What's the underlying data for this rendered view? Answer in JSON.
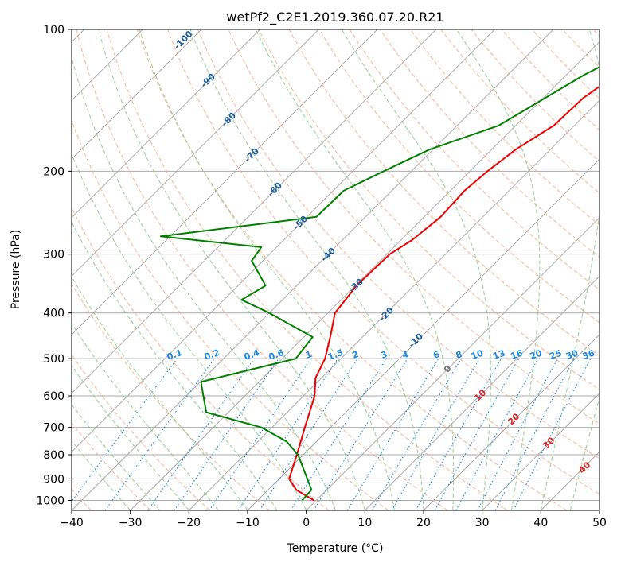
{
  "chart_data": {
    "type": "line",
    "subtype": "skew-t log-p diagram",
    "title": "wetPf2_C2E1.2019.360.07.20.R21",
    "xlabel": "Temperature (°C)",
    "ylabel": "Pressure (hPa)",
    "xlim": [
      -40,
      50
    ],
    "ylim": [
      1050,
      100
    ],
    "y_scale": "log",
    "x_ticks": [
      -40,
      -30,
      -20,
      -10,
      0,
      10,
      20,
      30,
      40,
      50
    ],
    "x_tick_labels": [
      "−40",
      "−30",
      "−20",
      "−10",
      "0",
      "10",
      "20",
      "30",
      "40",
      "50"
    ],
    "y_ticks": [
      100,
      200,
      300,
      400,
      500,
      600,
      700,
      800,
      900,
      1000
    ],
    "y_tick_labels": [
      "100",
      "200",
      "300",
      "400",
      "500",
      "600",
      "700",
      "800",
      "900",
      "1000"
    ],
    "grid": true,
    "series": [
      {
        "color": "#ee0000",
        "points": [
          [
            -18.8,
            100
          ],
          [
            -20.2,
            110
          ],
          [
            -21.6,
            125
          ],
          [
            -23.2,
            140
          ],
          [
            -23.5,
            160
          ],
          [
            -25.9,
            180
          ],
          [
            -27.0,
            200
          ],
          [
            -27.6,
            220
          ],
          [
            -27.2,
            250
          ],
          [
            -28.1,
            280
          ],
          [
            -29.5,
            300
          ],
          [
            -29.8,
            350
          ],
          [
            -28.8,
            400
          ],
          [
            -25.5,
            450
          ],
          [
            -22.7,
            500
          ],
          [
            -21.0,
            550
          ],
          [
            -18.1,
            600
          ],
          [
            -14.4,
            700
          ],
          [
            -11.1,
            800
          ],
          [
            -8.3,
            900
          ],
          [
            -5.2,
            950
          ],
          [
            -0.4,
            1000
          ]
        ]
      },
      {
        "color": "#008000",
        "points": [
          [
            -19.8,
            100
          ],
          [
            -27.0,
            125
          ],
          [
            -32.9,
            160
          ],
          [
            -40.6,
            180
          ],
          [
            -44.7,
            200
          ],
          [
            -48.2,
            220
          ],
          [
            -48.4,
            250
          ],
          [
            -71.6,
            275
          ],
          [
            -52.6,
            290
          ],
          [
            -51.9,
            310
          ],
          [
            -45.3,
            350
          ],
          [
            -47.0,
            375
          ],
          [
            -40.0,
            400
          ],
          [
            -28.5,
            450
          ],
          [
            -27.7,
            500
          ],
          [
            -39.9,
            560
          ],
          [
            -37.1,
            600
          ],
          [
            -33.8,
            650
          ],
          [
            -21.8,
            700
          ],
          [
            -15.1,
            750
          ],
          [
            -10.9,
            800
          ],
          [
            -5.2,
            900
          ],
          [
            -2.6,
            950
          ],
          [
            -2.4,
            1000
          ]
        ]
      }
    ],
    "isotherm_labels": [
      "-100",
      "-90",
      "-80",
      "-70",
      "-60",
      "-50",
      "-40",
      "-30",
      "-20",
      "-10",
      "0",
      "10",
      "20",
      "30",
      "40"
    ],
    "mixing_ratio_labels": [
      "0.1",
      "0.2",
      "0.4",
      "0.6",
      "1",
      "1.5",
      "2",
      "3",
      "4",
      "6",
      "8",
      "10",
      "13",
      "16",
      "20",
      "25",
      "30",
      "36"
    ]
  },
  "colors": {
    "temperature": "#ee0000",
    "dewpoint": "#008000",
    "dry_adiabat": "#f5a27f",
    "moist_adiabat": "#8cc98c",
    "mixing_ratio": "#1e88e5",
    "grid": "#a9a9a9",
    "isotherm_label_cold": "#1f5f9e",
    "isotherm_label_warm": "#d62728",
    "isotherm_label_zero": "#707070"
  }
}
